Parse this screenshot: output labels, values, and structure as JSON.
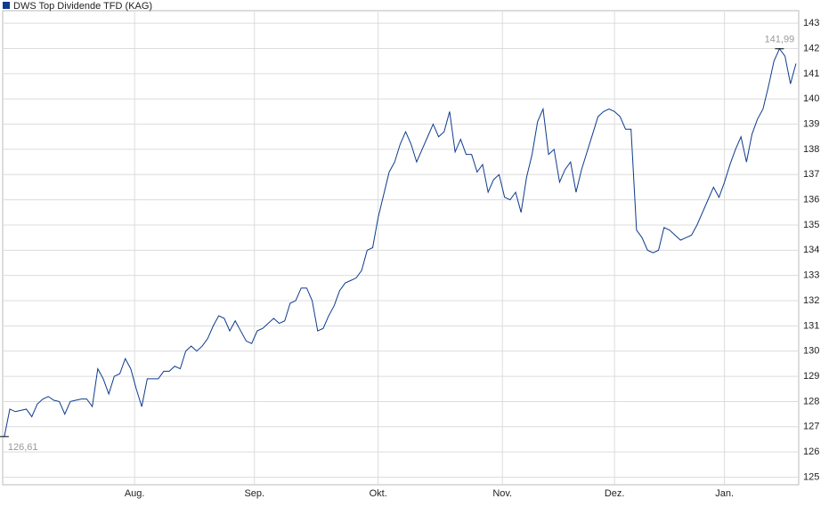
{
  "chart_data": {
    "type": "line",
    "series": [
      {
        "name": "DWS Top Dividende TFD (KAG)",
        "color": "#0d3b8e",
        "values": [
          126.61,
          127.7,
          127.6,
          127.65,
          127.7,
          127.4,
          127.9,
          128.1,
          128.2,
          128.05,
          128.0,
          127.5,
          128.0,
          128.05,
          128.1,
          128.1,
          127.8,
          129.3,
          128.9,
          128.3,
          129.0,
          129.1,
          129.7,
          129.3,
          128.5,
          127.8,
          128.9,
          128.9,
          128.9,
          129.2,
          129.2,
          129.4,
          129.3,
          130.0,
          130.2,
          130.0,
          130.2,
          130.5,
          131.0,
          131.4,
          131.3,
          130.8,
          131.2,
          130.8,
          130.4,
          130.3,
          130.8,
          130.9,
          131.1,
          131.3,
          131.1,
          131.2,
          131.9,
          132.0,
          132.5,
          132.5,
          132.0,
          130.8,
          130.9,
          131.4,
          131.8,
          132.4,
          132.7,
          132.8,
          132.9,
          133.2,
          134.0,
          134.1,
          135.3,
          136.2,
          137.1,
          137.5,
          138.2,
          138.7,
          138.2,
          137.5,
          138.0,
          138.5,
          139.0,
          138.5,
          138.7,
          139.5,
          137.9,
          138.4,
          137.8,
          137.8,
          137.1,
          137.4,
          136.3,
          136.8,
          137.0,
          136.1,
          136.0,
          136.3,
          135.5,
          136.9,
          137.8,
          139.1,
          139.6,
          137.8,
          138.0,
          136.7,
          137.2,
          137.5,
          136.3,
          137.2,
          137.9,
          138.6,
          139.3,
          139.5,
          139.6,
          139.5,
          139.3,
          138.8,
          138.8,
          134.8,
          134.5,
          134.0,
          133.9,
          134.0,
          134.9,
          134.8,
          134.6,
          134.4,
          134.5,
          134.6,
          135.0,
          135.5,
          136.0,
          136.5,
          136.1,
          136.7,
          137.4,
          138.0,
          138.5,
          137.5,
          138.6,
          139.2,
          139.6,
          140.5,
          141.5,
          141.99,
          141.7,
          140.6,
          141.4
        ]
      }
    ],
    "xlim": [
      -0.3,
      144.5
    ],
    "xticks": [
      {
        "value": 23.7,
        "label": "Aug."
      },
      {
        "value": 45.5,
        "label": "Sep."
      },
      {
        "value": 68.0,
        "label": "Okt."
      },
      {
        "value": 90.6,
        "label": "Nov."
      },
      {
        "value": 111.0,
        "label": "Dez."
      },
      {
        "value": 131.0,
        "label": "Jan."
      }
    ],
    "ylim": [
      124.7,
      143.5
    ],
    "yticks": [
      125,
      126,
      127,
      128,
      129,
      130,
      131,
      132,
      133,
      134,
      135,
      136,
      137,
      138,
      139,
      140,
      141,
      142,
      143
    ],
    "grid": true,
    "annotations": [
      {
        "index": 0,
        "value": 126.61,
        "label": "126,61"
      },
      {
        "index": 141,
        "value": 141.99,
        "label": "141,99"
      }
    ]
  }
}
